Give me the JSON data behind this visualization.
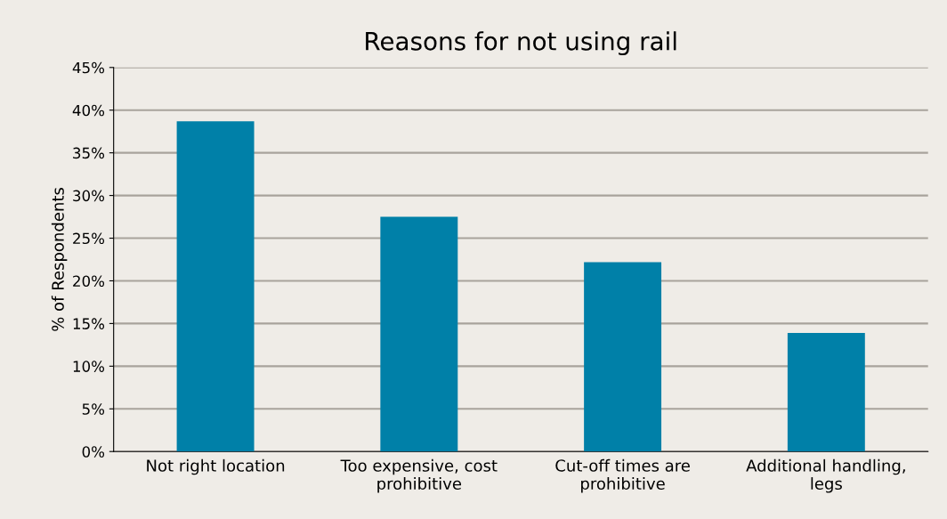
{
  "chart_data": {
    "type": "bar",
    "title": "Reasons for not using rail",
    "ylabel": "% of Respondents",
    "categories": [
      "Not right location",
      "Too expensive, cost prohibitive",
      "Cut-off times are prohibitive",
      "Additional handling, legs"
    ],
    "values": [
      38.7,
      27.5,
      22.2,
      13.9
    ],
    "color": "#0080a8",
    "ylim": [
      0,
      45
    ],
    "yticks": [
      {
        "value": 0,
        "label": "0%"
      },
      {
        "value": 5,
        "label": "5%"
      },
      {
        "value": 10,
        "label": "10%"
      },
      {
        "value": 15,
        "label": "15%"
      },
      {
        "value": 20,
        "label": "20%"
      },
      {
        "value": 25,
        "label": "25%"
      },
      {
        "value": 30,
        "label": "30%"
      },
      {
        "value": 35,
        "label": "35%"
      },
      {
        "value": 40,
        "label": "40%"
      },
      {
        "value": 45,
        "label": "45%"
      }
    ],
    "grid": "y"
  }
}
